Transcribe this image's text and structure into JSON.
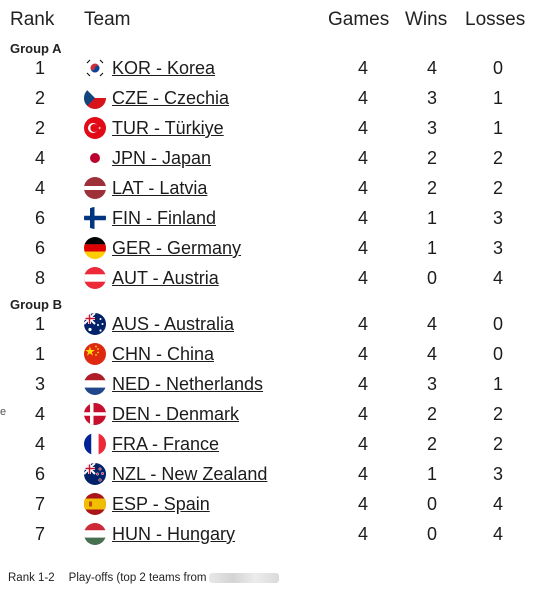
{
  "header": {
    "rank": "Rank",
    "team": "Team",
    "games": "Games",
    "wins": "Wins",
    "losses": "Losses"
  },
  "groups": [
    {
      "label": "Group A",
      "rows": [
        {
          "rank": "1",
          "team": "KOR - Korea",
          "flag": "korea-flag-icon",
          "games": "4",
          "wins": "4",
          "losses": "0"
        },
        {
          "rank": "2",
          "team": "CZE - Czechia",
          "flag": "czechia-flag-icon",
          "games": "4",
          "wins": "3",
          "losses": "1"
        },
        {
          "rank": "2",
          "team": "TUR - Türkiye",
          "flag": "turkiye-flag-icon",
          "games": "4",
          "wins": "3",
          "losses": "1"
        },
        {
          "rank": "4",
          "team": "JPN - Japan",
          "flag": "japan-flag-icon",
          "games": "4",
          "wins": "2",
          "losses": "2"
        },
        {
          "rank": "4",
          "team": "LAT - Latvia",
          "flag": "latvia-flag-icon",
          "games": "4",
          "wins": "2",
          "losses": "2"
        },
        {
          "rank": "6",
          "team": "FIN - Finland",
          "flag": "finland-flag-icon",
          "games": "4",
          "wins": "1",
          "losses": "3"
        },
        {
          "rank": "6",
          "team": "GER - Germany",
          "flag": "germany-flag-icon",
          "games": "4",
          "wins": "1",
          "losses": "3"
        },
        {
          "rank": "8",
          "team": "AUT - Austria",
          "flag": "austria-flag-icon",
          "games": "4",
          "wins": "0",
          "losses": "4"
        }
      ]
    },
    {
      "label": "Group B",
      "rows": [
        {
          "rank": "1",
          "team": "AUS - Australia",
          "flag": "australia-flag-icon",
          "games": "4",
          "wins": "4",
          "losses": "0"
        },
        {
          "rank": "1",
          "team": "CHN - China",
          "flag": "china-flag-icon",
          "games": "4",
          "wins": "4",
          "losses": "0"
        },
        {
          "rank": "3",
          "team": "NED - Netherlands",
          "flag": "netherlands-flag-icon",
          "games": "4",
          "wins": "3",
          "losses": "1"
        },
        {
          "rank": "4",
          "team": "DEN - Denmark",
          "flag": "denmark-flag-icon",
          "games": "4",
          "wins": "2",
          "losses": "2"
        },
        {
          "rank": "4",
          "team": "FRA - France",
          "flag": "france-flag-icon",
          "games": "4",
          "wins": "2",
          "losses": "2"
        },
        {
          "rank": "6",
          "team": "NZL - New Zealand",
          "flag": "new-zealand-flag-icon",
          "games": "4",
          "wins": "1",
          "losses": "3"
        },
        {
          "rank": "7",
          "team": "ESP - Spain",
          "flag": "spain-flag-icon",
          "games": "4",
          "wins": "0",
          "losses": "4"
        },
        {
          "rank": "7",
          "team": "HUN - Hungary",
          "flag": "hungary-flag-icon",
          "games": "4",
          "wins": "0",
          "losses": "4"
        }
      ]
    }
  ],
  "left_mark": "e",
  "footer": {
    "rank_code": "Rank 1-2",
    "description": "Play-offs (top 2 teams from"
  }
}
